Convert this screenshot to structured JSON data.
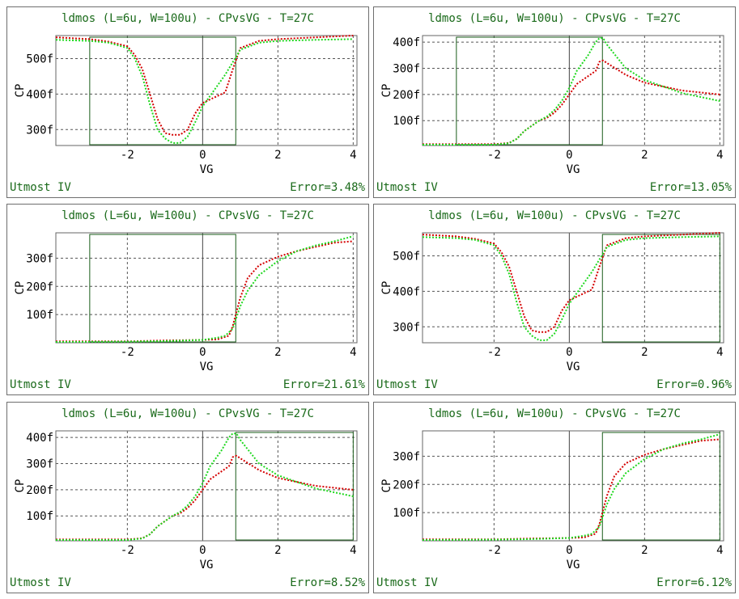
{
  "chart_data": [
    {
      "type": "line",
      "title": "ldmos (L=6u, W=100u) - CPvsVG - T=27C",
      "xlabel": "VG",
      "ylabel": "CP",
      "xlim": [
        -3.9,
        4.1
      ],
      "ylim": [
        255,
        565
      ],
      "xticks": [
        -2,
        0,
        2,
        4
      ],
      "xtick_labels": [
        "-2",
        "0",
        "2",
        "4"
      ],
      "yticks": [
        300,
        400,
        500
      ],
      "ytick_labels": [
        "300f",
        "400f",
        "500f"
      ],
      "grid": true,
      "window": [
        -3,
        0.88
      ],
      "footer_left": "Utmost IV",
      "footer_right": "Error=3.48%",
      "series": [
        {
          "color": "#d40000",
          "x": [
            -3.9,
            -3,
            -2.5,
            -2,
            -1.8,
            -1.6,
            -1.4,
            -1.2,
            -1,
            -0.8,
            -0.6,
            -0.4,
            -0.2,
            0,
            0.3,
            0.6,
            0.8,
            1,
            1.5,
            2,
            3,
            4
          ],
          "y": [
            560,
            555,
            548,
            535,
            510,
            470,
            400,
            330,
            290,
            285,
            285,
            300,
            345,
            375,
            390,
            405,
            470,
            530,
            550,
            555,
            560,
            565
          ]
        },
        {
          "color": "#1fd81f",
          "x": [
            -3.9,
            -3,
            -2.5,
            -2,
            -1.8,
            -1.6,
            -1.4,
            -1.2,
            -1,
            -0.8,
            -0.6,
            -0.4,
            -0.2,
            0,
            0.3,
            0.6,
            0.8,
            1,
            1.5,
            2,
            3,
            4
          ],
          "y": [
            553,
            550,
            545,
            530,
            500,
            450,
            370,
            300,
            275,
            262,
            262,
            280,
            320,
            365,
            410,
            455,
            490,
            525,
            545,
            550,
            553,
            555
          ]
        }
      ]
    },
    {
      "type": "line",
      "title": "ldmos (L=6u, W=100u) - CPvsVG - T=27C",
      "xlabel": "VG",
      "ylabel": "CP",
      "xlim": [
        -3.9,
        4.1
      ],
      "ylim": [
        5,
        425
      ],
      "xticks": [
        -2,
        0,
        2,
        4
      ],
      "xtick_labels": [
        "-2",
        "0",
        "2",
        "4"
      ],
      "yticks": [
        100,
        200,
        300,
        400
      ],
      "ytick_labels": [
        "100f",
        "200f",
        "300f",
        "400f"
      ],
      "grid": true,
      "window": [
        -3,
        0.88
      ],
      "footer_left": "Utmost IV",
      "footer_right": "Error=13.05%",
      "series": [
        {
          "color": "#d40000",
          "x": [
            -3.9,
            -2,
            -1.6,
            -1.4,
            -1.2,
            -1,
            -0.8,
            -0.6,
            -0.4,
            -0.2,
            0,
            0.2,
            0.5,
            0.7,
            0.8,
            0.9,
            1,
            1.5,
            2,
            3,
            4
          ],
          "y": [
            10,
            10,
            15,
            30,
            60,
            80,
            100,
            110,
            130,
            160,
            200,
            240,
            270,
            290,
            325,
            330,
            320,
            275,
            245,
            215,
            200
          ]
        },
        {
          "color": "#1fd81f",
          "x": [
            -3.9,
            -2,
            -1.6,
            -1.4,
            -1.2,
            -1,
            -0.8,
            -0.6,
            -0.4,
            -0.2,
            0,
            0.2,
            0.5,
            0.7,
            0.8,
            0.9,
            1,
            1.5,
            2,
            3,
            4
          ],
          "y": [
            8,
            8,
            14,
            30,
            60,
            80,
            100,
            115,
            140,
            175,
            225,
            290,
            350,
            400,
            415,
            415,
            390,
            300,
            255,
            205,
            175
          ]
        }
      ]
    },
    {
      "type": "line",
      "title": "ldmos (L=6u, W=100u) - CPvsVG - T=27C",
      "xlabel": "VG",
      "ylabel": "CP",
      "xlim": [
        -3.9,
        4.1
      ],
      "ylim": [
        0,
        390
      ],
      "xticks": [
        -2,
        0,
        2,
        4
      ],
      "xtick_labels": [
        "-2",
        "0",
        "2",
        "4"
      ],
      "yticks": [
        100,
        200,
        300
      ],
      "ytick_labels": [
        "100f",
        "200f",
        "300f"
      ],
      "grid": true,
      "window": [
        -3,
        0.88
      ],
      "footer_left": "Utmost IV",
      "footer_right": "Error=21.61%",
      "series": [
        {
          "color": "#d40000",
          "x": [
            -3.9,
            -2,
            -1,
            0,
            0.4,
            0.7,
            0.8,
            0.9,
            1,
            1.2,
            1.5,
            2,
            2.5,
            3,
            3.5,
            4
          ],
          "y": [
            5,
            5,
            8,
            10,
            12,
            25,
            60,
            110,
            160,
            230,
            275,
            305,
            325,
            340,
            355,
            360
          ]
        },
        {
          "color": "#1fd81f",
          "x": [
            -3.9,
            -2,
            -1,
            0,
            0.4,
            0.6,
            0.8,
            0.9,
            1,
            1.2,
            1.5,
            2,
            2.5,
            3,
            3.5,
            4
          ],
          "y": [
            3,
            4,
            6,
            10,
            18,
            25,
            50,
            90,
            130,
            185,
            240,
            290,
            325,
            345,
            360,
            378
          ]
        }
      ]
    },
    {
      "type": "line",
      "title": "ldmos (L=6u, W=100u) - CPvsVG - T=27C",
      "xlabel": "VG",
      "ylabel": "CP",
      "xlim": [
        -3.9,
        4.1
      ],
      "ylim": [
        255,
        565
      ],
      "xticks": [
        -2,
        0,
        2,
        4
      ],
      "xtick_labels": [
        "-2",
        "0",
        "2",
        "4"
      ],
      "yticks": [
        300,
        400,
        500
      ],
      "ytick_labels": [
        "300f",
        "400f",
        "500f"
      ],
      "grid": true,
      "window": [
        0.88,
        4.0
      ],
      "footer_left": "Utmost IV",
      "footer_right": "Error=0.96%",
      "series": [
        {
          "color": "#d40000",
          "x": [
            -3.9,
            -3,
            -2.5,
            -2,
            -1.8,
            -1.6,
            -1.4,
            -1.2,
            -1,
            -0.8,
            -0.6,
            -0.4,
            -0.2,
            0,
            0.3,
            0.6,
            0.8,
            1,
            1.5,
            2,
            3,
            4
          ],
          "y": [
            560,
            555,
            548,
            535,
            510,
            470,
            400,
            330,
            290,
            285,
            285,
            300,
            345,
            375,
            390,
            405,
            470,
            530,
            550,
            555,
            560,
            565
          ]
        },
        {
          "color": "#1fd81f",
          "x": [
            -3.9,
            -3,
            -2.5,
            -2,
            -1.8,
            -1.6,
            -1.4,
            -1.2,
            -1,
            -0.8,
            -0.6,
            -0.4,
            -0.2,
            0,
            0.3,
            0.6,
            0.8,
            1,
            1.5,
            2,
            3,
            4
          ],
          "y": [
            553,
            550,
            545,
            530,
            500,
            450,
            370,
            300,
            275,
            262,
            262,
            280,
            320,
            365,
            410,
            455,
            490,
            525,
            545,
            550,
            553,
            555
          ]
        }
      ]
    },
    {
      "type": "line",
      "title": "ldmos (L=6u, W=100u) - CPvsVG - T=27C",
      "xlabel": "VG",
      "ylabel": "CP",
      "xlim": [
        -3.9,
        4.1
      ],
      "ylim": [
        5,
        425
      ],
      "xticks": [
        -2,
        0,
        2,
        4
      ],
      "xtick_labels": [
        "-2",
        "0",
        "2",
        "4"
      ],
      "yticks": [
        100,
        200,
        300,
        400
      ],
      "ytick_labels": [
        "100f",
        "200f",
        "300f",
        "400f"
      ],
      "grid": true,
      "window": [
        0.88,
        4.0
      ],
      "footer_left": "Utmost IV",
      "footer_right": "Error=8.52%",
      "series": [
        {
          "color": "#d40000",
          "x": [
            -3.9,
            -2,
            -1.6,
            -1.4,
            -1.2,
            -1,
            -0.8,
            -0.6,
            -0.4,
            -0.2,
            0,
            0.2,
            0.5,
            0.7,
            0.8,
            0.9,
            1,
            1.5,
            2,
            3,
            4
          ],
          "y": [
            10,
            10,
            15,
            30,
            60,
            80,
            100,
            110,
            130,
            160,
            200,
            240,
            270,
            290,
            325,
            330,
            320,
            275,
            245,
            215,
            200
          ]
        },
        {
          "color": "#1fd81f",
          "x": [
            -3.9,
            -2,
            -1.6,
            -1.4,
            -1.2,
            -1,
            -0.8,
            -0.6,
            -0.4,
            -0.2,
            0,
            0.2,
            0.5,
            0.7,
            0.8,
            0.9,
            1,
            1.5,
            2,
            3,
            4
          ],
          "y": [
            8,
            8,
            14,
            30,
            60,
            80,
            100,
            115,
            140,
            175,
            225,
            290,
            350,
            400,
            415,
            415,
            390,
            300,
            255,
            205,
            175
          ]
        }
      ]
    },
    {
      "type": "line",
      "title": "ldmos (L=6u, W=100u) - CPvsVG - T=27C",
      "xlabel": "VG",
      "ylabel": "CP",
      "xlim": [
        -3.9,
        4.1
      ],
      "ylim": [
        0,
        390
      ],
      "xticks": [
        -2,
        0,
        2,
        4
      ],
      "xtick_labels": [
        "-2",
        "0",
        "2",
        "4"
      ],
      "yticks": [
        100,
        200,
        300
      ],
      "ytick_labels": [
        "100f",
        "200f",
        "300f"
      ],
      "grid": true,
      "window": [
        0.88,
        4.0
      ],
      "footer_left": "Utmost IV",
      "footer_right": "Error=6.12%",
      "series": [
        {
          "color": "#d40000",
          "x": [
            -3.9,
            -2,
            -1,
            0,
            0.4,
            0.7,
            0.8,
            0.9,
            1,
            1.2,
            1.5,
            2,
            2.5,
            3,
            3.5,
            4
          ],
          "y": [
            5,
            5,
            8,
            10,
            12,
            25,
            60,
            110,
            160,
            230,
            275,
            305,
            325,
            340,
            355,
            360
          ]
        },
        {
          "color": "#1fd81f",
          "x": [
            -3.9,
            -2,
            -1,
            0,
            0.4,
            0.6,
            0.8,
            0.9,
            1,
            1.2,
            1.5,
            2,
            2.5,
            3,
            3.5,
            4
          ],
          "y": [
            3,
            4,
            6,
            10,
            18,
            25,
            50,
            90,
            130,
            185,
            240,
            290,
            325,
            345,
            360,
            378
          ]
        }
      ]
    }
  ]
}
